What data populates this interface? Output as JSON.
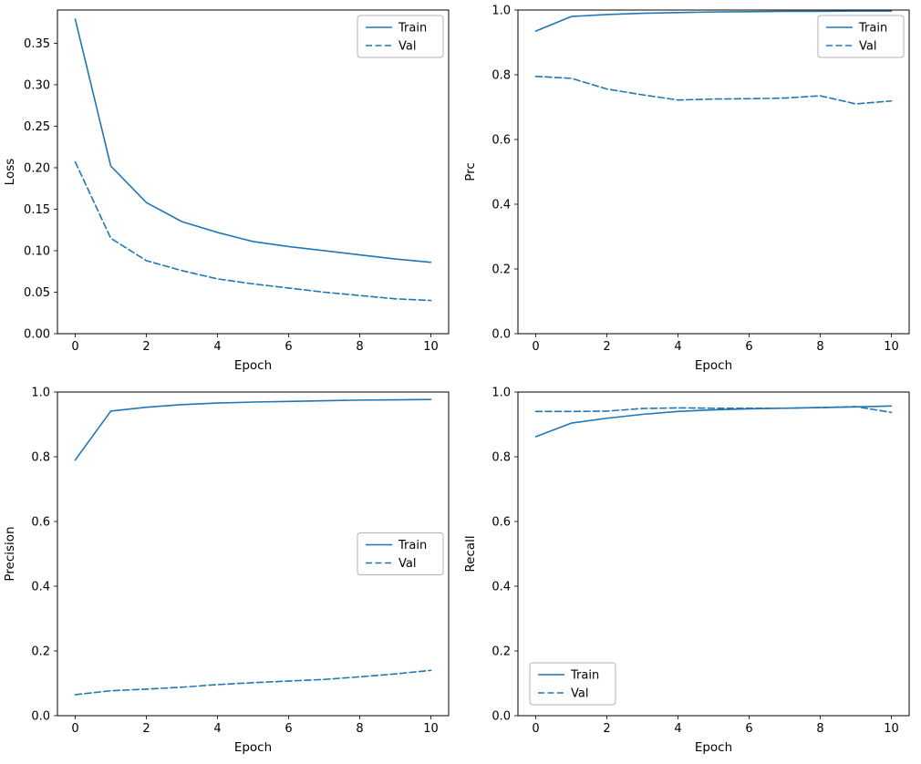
{
  "figure": {
    "background": "#ffffff",
    "line_color": "#1f77b4",
    "axis_color": "#000000",
    "legend_border_color": "#b3b3b3",
    "legend_labels": [
      "Train",
      "Val"
    ]
  },
  "chart_data": [
    {
      "id": "loss",
      "type": "line",
      "title": "",
      "xlabel": "Epoch",
      "ylabel": "Loss",
      "x": [
        0,
        1,
        2,
        3,
        4,
        5,
        6,
        7,
        8,
        9,
        10
      ],
      "xlim": [
        -0.5,
        10.5
      ],
      "ylim": [
        0.0,
        0.39
      ],
      "xticks": [
        0,
        2,
        4,
        6,
        8,
        10
      ],
      "xtick_labels": [
        "0",
        "2",
        "4",
        "6",
        "8",
        "10"
      ],
      "yticks": [
        0.0,
        0.05,
        0.1,
        0.15,
        0.2,
        0.25,
        0.3,
        0.35
      ],
      "ytick_labels": [
        "0.00",
        "0.05",
        "0.10",
        "0.15",
        "0.20",
        "0.25",
        "0.30",
        "0.35"
      ],
      "grid": false,
      "legend_position": "top-right",
      "series": [
        {
          "name": "Train",
          "style": "solid",
          "values": [
            0.379,
            0.202,
            0.158,
            0.135,
            0.122,
            0.111,
            0.105,
            0.1,
            0.095,
            0.09,
            0.086
          ]
        },
        {
          "name": "Val",
          "style": "dashed",
          "values": [
            0.207,
            0.115,
            0.088,
            0.076,
            0.066,
            0.06,
            0.055,
            0.05,
            0.046,
            0.042,
            0.04
          ]
        }
      ]
    },
    {
      "id": "prc",
      "type": "line",
      "title": "",
      "xlabel": "Epoch",
      "ylabel": "Prc",
      "x": [
        0,
        1,
        2,
        3,
        4,
        5,
        6,
        7,
        8,
        9,
        10
      ],
      "xlim": [
        -0.5,
        10.5
      ],
      "ylim": [
        0.0,
        1.0
      ],
      "xticks": [
        0,
        2,
        4,
        6,
        8,
        10
      ],
      "xtick_labels": [
        "0",
        "2",
        "4",
        "6",
        "8",
        "10"
      ],
      "yticks": [
        0.0,
        0.2,
        0.4,
        0.6,
        0.8,
        1.0
      ],
      "ytick_labels": [
        "0.0",
        "0.2",
        "0.4",
        "0.6",
        "0.8",
        "1.0"
      ],
      "grid": false,
      "legend_position": "top-right",
      "series": [
        {
          "name": "Train",
          "style": "solid",
          "values": [
            0.935,
            0.98,
            0.986,
            0.99,
            0.992,
            0.994,
            0.995,
            0.996,
            0.996,
            0.997,
            0.997
          ]
        },
        {
          "name": "Val",
          "style": "dashed",
          "values": [
            0.795,
            0.789,
            0.756,
            0.738,
            0.722,
            0.725,
            0.726,
            0.728,
            0.735,
            0.71,
            0.719
          ]
        }
      ]
    },
    {
      "id": "precision",
      "type": "line",
      "title": "",
      "xlabel": "Epoch",
      "ylabel": "Precision",
      "x": [
        0,
        1,
        2,
        3,
        4,
        5,
        6,
        7,
        8,
        9,
        10
      ],
      "xlim": [
        -0.5,
        10.5
      ],
      "ylim": [
        0.0,
        1.0
      ],
      "xticks": [
        0,
        2,
        4,
        6,
        8,
        10
      ],
      "xtick_labels": [
        "0",
        "2",
        "4",
        "6",
        "8",
        "10"
      ],
      "yticks": [
        0.0,
        0.2,
        0.4,
        0.6,
        0.8,
        1.0
      ],
      "ytick_labels": [
        "0.0",
        "0.2",
        "0.4",
        "0.6",
        "0.8",
        "1.0"
      ],
      "grid": false,
      "legend_position": "center-right",
      "series": [
        {
          "name": "Train",
          "style": "solid",
          "values": [
            0.79,
            0.941,
            0.953,
            0.961,
            0.966,
            0.969,
            0.971,
            0.973,
            0.975,
            0.976,
            0.977
          ]
        },
        {
          "name": "Val",
          "style": "dashed",
          "values": [
            0.065,
            0.077,
            0.082,
            0.088,
            0.096,
            0.102,
            0.107,
            0.112,
            0.12,
            0.129,
            0.14
          ]
        }
      ]
    },
    {
      "id": "recall",
      "type": "line",
      "title": "",
      "xlabel": "Epoch",
      "ylabel": "Recall",
      "x": [
        0,
        1,
        2,
        3,
        4,
        5,
        6,
        7,
        8,
        9,
        10
      ],
      "xlim": [
        -0.5,
        10.5
      ],
      "ylim": [
        0.0,
        1.0
      ],
      "xticks": [
        0,
        2,
        4,
        6,
        8,
        10
      ],
      "xtick_labels": [
        "0",
        "2",
        "4",
        "6",
        "8",
        "10"
      ],
      "yticks": [
        0.0,
        0.2,
        0.4,
        0.6,
        0.8,
        1.0
      ],
      "ytick_labels": [
        "0.0",
        "0.2",
        "0.4",
        "0.6",
        "0.8",
        "1.0"
      ],
      "grid": false,
      "legend_position": "lower-left",
      "series": [
        {
          "name": "Train",
          "style": "solid",
          "values": [
            0.862,
            0.904,
            0.919,
            0.931,
            0.94,
            0.945,
            0.948,
            0.95,
            0.952,
            0.954,
            0.957
          ]
        },
        {
          "name": "Val",
          "style": "dashed",
          "values": [
            0.94,
            0.94,
            0.941,
            0.949,
            0.951,
            0.95,
            0.95,
            0.95,
            0.952,
            0.955,
            0.937
          ]
        }
      ]
    }
  ]
}
